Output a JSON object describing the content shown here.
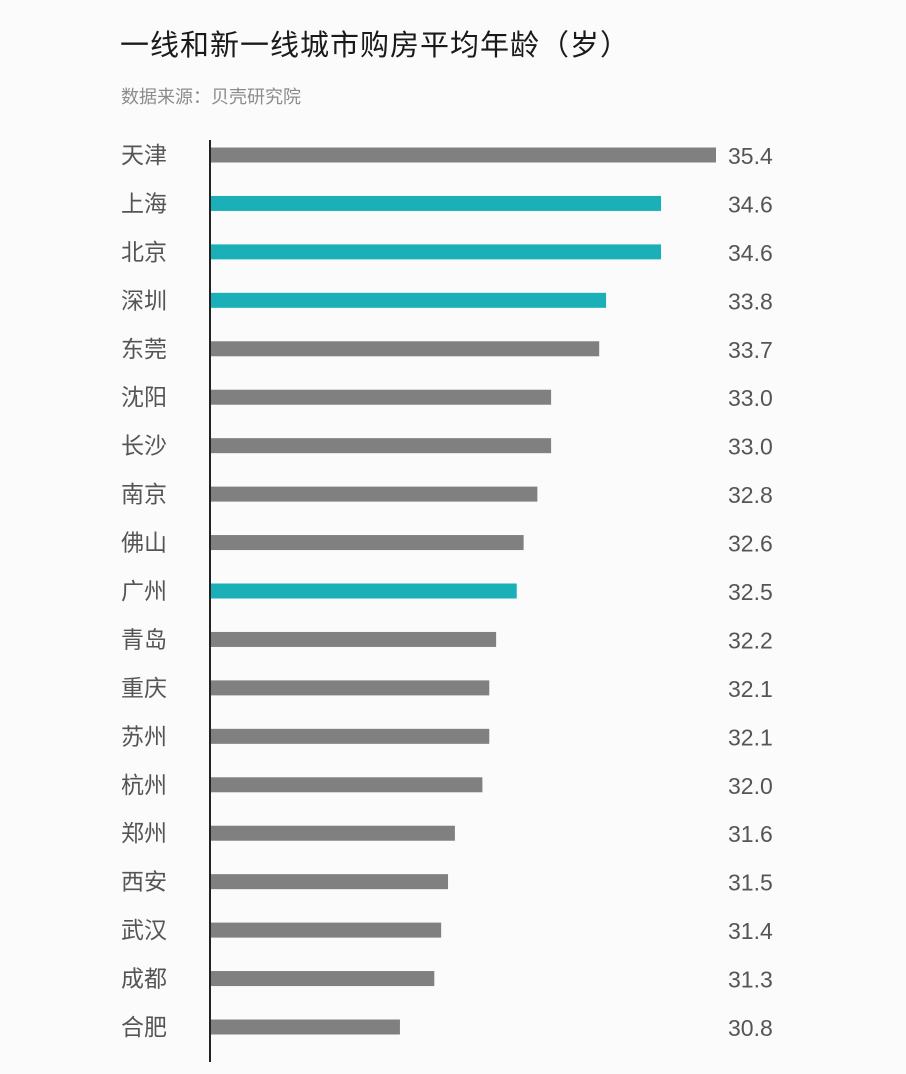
{
  "chart_data": {
    "type": "bar",
    "orientation": "horizontal",
    "title": "一线和新一线城市购房平均年龄（岁）",
    "source": "数据来源：贝壳研究院",
    "categories": [
      "天津",
      "上海",
      "北京",
      "深圳",
      "东莞",
      "沈阳",
      "长沙",
      "南京",
      "佛山",
      "广州",
      "青岛",
      "重庆",
      "苏州",
      "杭州",
      "郑州",
      "西安",
      "武汉",
      "成都",
      "合肥"
    ],
    "values": [
      35.4,
      34.6,
      34.6,
      33.8,
      33.7,
      33.0,
      33.0,
      32.8,
      32.6,
      32.5,
      32.2,
      32.1,
      32.1,
      32.0,
      31.6,
      31.5,
      31.4,
      31.3,
      30.8
    ],
    "value_labels": [
      "35.4",
      "34.6",
      "34.6",
      "33.8",
      "33.7",
      "33.0",
      "33.0",
      "32.8",
      "32.6",
      "32.5",
      "32.2",
      "32.1",
      "32.1",
      "32.0",
      "31.6",
      "31.5",
      "31.4",
      "31.3",
      "30.8"
    ],
    "highlight": [
      "上海",
      "北京",
      "深圳",
      "广州"
    ],
    "xlim": [
      28.05,
      35.4
    ],
    "xlabel": "",
    "ylabel": "",
    "grid": false,
    "colors": {
      "default": "#808080",
      "highlight": "#1bb0b8",
      "axis": "#222222",
      "label": "#555555"
    }
  }
}
